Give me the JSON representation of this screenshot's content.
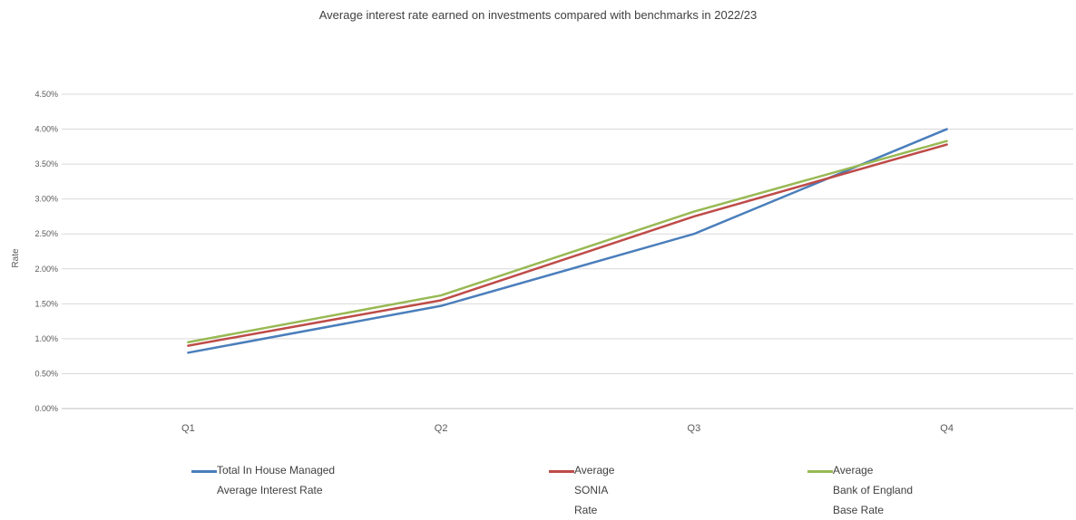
{
  "chart_data": {
    "type": "line",
    "title": "Average interest rate earned on investments compared with benchmarks in 2022/23",
    "ylabel": "Rate",
    "xlabel": "",
    "categories": [
      "Q1",
      "Q2",
      "Q3",
      "Q4"
    ],
    "ylim": [
      0,
      4.5
    ],
    "yticks": [
      "0.00%",
      "0.50%",
      "1.00%",
      "1.50%",
      "2.00%",
      "2.50%",
      "3.00%",
      "3.50%",
      "4.00%",
      "4.50%"
    ],
    "grid": true,
    "legend_position": "bottom",
    "series": [
      {
        "name": "Total In House Managed Average Interest Rate",
        "label_lines": [
          "Total In House Managed",
          "Average Interest Rate"
        ],
        "color": "#4a7ebb",
        "values": [
          0.8,
          1.47,
          2.5,
          4.0
        ]
      },
      {
        "name": "Average SONIA Rate",
        "label_lines": [
          "Average",
          "SONIA",
          "Rate"
        ],
        "color": "#be4b48",
        "values": [
          0.9,
          1.55,
          2.75,
          3.78
        ]
      },
      {
        "name": "Average Bank of England Base Rate",
        "label_lines": [
          "Average",
          "Bank of England",
          "Base Rate"
        ],
        "color": "#98b954",
        "values": [
          0.95,
          1.62,
          2.82,
          3.83
        ]
      }
    ]
  }
}
